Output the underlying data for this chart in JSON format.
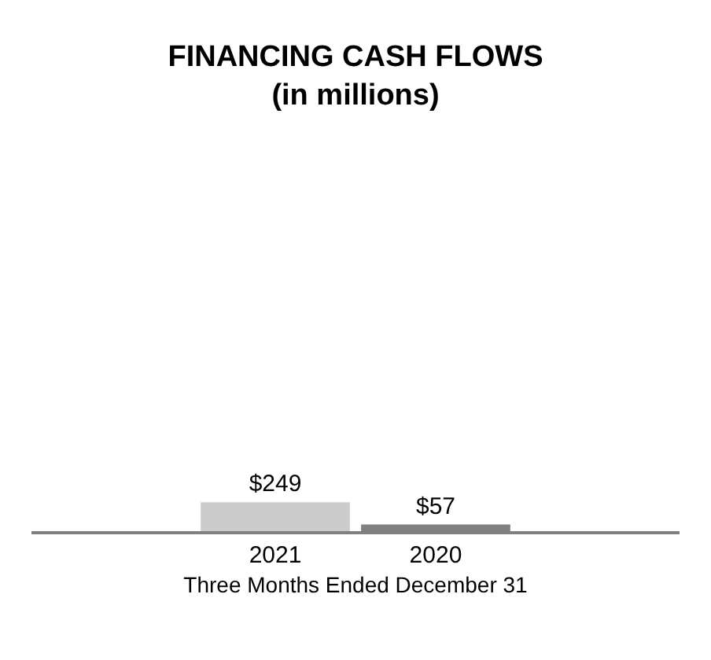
{
  "chart_data": {
    "type": "bar",
    "title": "FINANCING CASH FLOWS\n(in millions)",
    "xlabel": "Three Months Ended December 31",
    "categories": [
      "2021",
      "2020"
    ],
    "values": [
      249,
      57
    ],
    "colors": [
      "#cccccc",
      "#808080"
    ],
    "value_labels": [
      "$249",
      "$57"
    ],
    "tick_labels": "x",
    "legend": false
  }
}
